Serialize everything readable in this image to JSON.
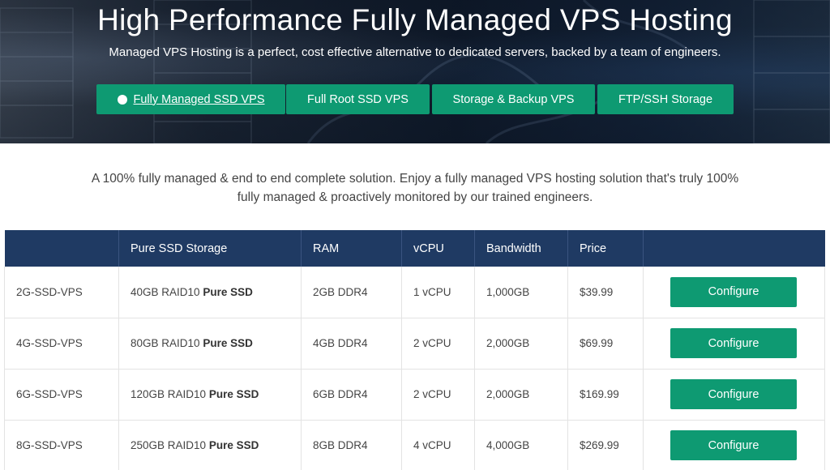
{
  "hero": {
    "title": "High Performance Fully Managed VPS Hosting",
    "subtitle": "Managed VPS Hosting is a perfect, cost effective alternative to dedicated servers, backed by a team of engineers.",
    "tabs": [
      {
        "label": "Fully Managed SSD VPS",
        "active": true
      },
      {
        "label": "Full Root SSD VPS",
        "active": false
      },
      {
        "label": "Storage & Backup VPS",
        "active": false
      },
      {
        "label": "FTP/SSH Storage",
        "active": false
      }
    ]
  },
  "intro": {
    "text": "A 100% fully managed & end to end complete solution. Enjoy a fully managed VPS hosting solution that's truly 100% fully managed & proactively monitored by our trained engineers."
  },
  "table": {
    "headers": [
      "",
      "Pure SSD Storage",
      "RAM",
      "vCPU",
      "Bandwidth",
      "Price",
      ""
    ],
    "rows": [
      {
        "plan": "2G-SSD-VPS",
        "storage_prefix": "40GB RAID10",
        "storage_bold": "Pure SSD",
        "ram": "2GB DDR4",
        "vcpu": "1 vCPU",
        "bandwidth": "1,000GB",
        "price": "$39.99",
        "button": "Configure"
      },
      {
        "plan": "4G-SSD-VPS",
        "storage_prefix": "80GB RAID10",
        "storage_bold": "Pure SSD",
        "ram": "4GB DDR4",
        "vcpu": "2 vCPU",
        "bandwidth": "2,000GB",
        "price": "$69.99",
        "button": "Configure"
      },
      {
        "plan": "6G-SSD-VPS",
        "storage_prefix": "120GB RAID10",
        "storage_bold": "Pure SSD",
        "ram": "6GB DDR4",
        "vcpu": "2 vCPU",
        "bandwidth": "2,000GB",
        "price": "$169.99",
        "button": "Configure"
      },
      {
        "plan": "8G-SSD-VPS",
        "storage_prefix": "250GB RAID10",
        "storage_bold": "Pure SSD",
        "ram": "8GB DDR4",
        "vcpu": "4 vCPU",
        "bandwidth": "4,000GB",
        "price": "$269.99",
        "button": "Configure"
      }
    ]
  },
  "colors": {
    "accent_green": "#0e9a72",
    "table_header_navy": "#1f3a63"
  }
}
